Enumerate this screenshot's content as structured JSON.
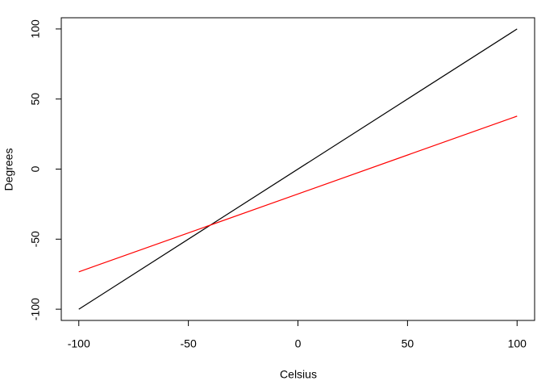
{
  "chart_data": {
    "type": "line",
    "xlabel": "Celsius",
    "ylabel": "Degrees",
    "x": [
      -100,
      100
    ],
    "series": [
      {
        "color": "#000000",
        "values": [
          -100,
          100
        ]
      },
      {
        "color": "#ff0000",
        "values": [
          -73.3,
          37.8
        ]
      }
    ],
    "xlim": [
      -108,
      108
    ],
    "ylim": [
      -108,
      108
    ],
    "xticks": [
      -100,
      -50,
      0,
      50,
      100
    ],
    "yticks": [
      -100,
      -50,
      0,
      50,
      100
    ]
  }
}
